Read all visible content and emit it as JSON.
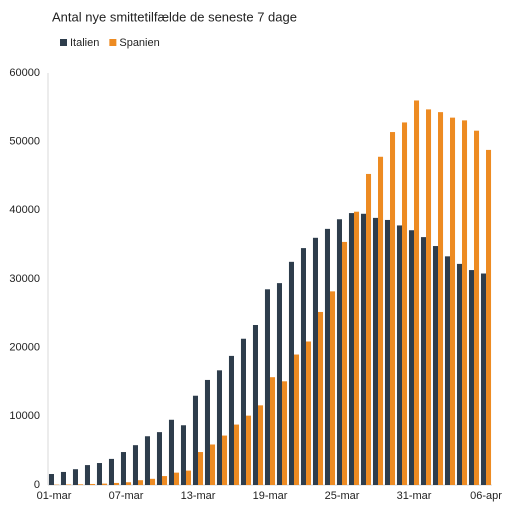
{
  "chart_data": {
    "type": "bar",
    "title": "Antal nye smittetilfælde de seneste 7 dage",
    "categories": [
      "01-mar",
      null,
      null,
      null,
      null,
      null,
      "07-mar",
      null,
      null,
      null,
      null,
      null,
      "13-mar",
      null,
      null,
      null,
      null,
      null,
      "19-mar",
      null,
      null,
      null,
      null,
      null,
      "25-mar",
      null,
      null,
      null,
      null,
      null,
      "31-mar",
      null,
      null,
      null,
      null,
      null,
      "06-apr"
    ],
    "series": [
      {
        "name": "Italien",
        "color": "#2e3d4c",
        "values": [
          1600,
          1900,
          2300,
          2900,
          3200,
          3800,
          4800,
          5800,
          7100,
          7700,
          9500,
          8700,
          13000,
          15300,
          16700,
          18800,
          21300,
          23300,
          28500,
          29400,
          32500,
          34500,
          36000,
          37300,
          38700,
          39600,
          39500,
          38900,
          38600,
          37800,
          37100,
          36100,
          34800,
          33300,
          32200,
          31300,
          30800
        ]
      },
      {
        "name": "Spanien",
        "color": "#ed8b22",
        "values": [
          50,
          80,
          100,
          150,
          200,
          300,
          400,
          700,
          900,
          1300,
          1800,
          2100,
          4800,
          5900,
          7200,
          8800,
          10100,
          11600,
          15700,
          15100,
          19000,
          20900,
          25200,
          28200,
          35400,
          39800,
          45300,
          47800,
          51400,
          52800,
          56000,
          54700,
          54300,
          53500,
          53100,
          51600,
          48800
        ]
      }
    ],
    "ylim": [
      0,
      60000
    ],
    "yticks": [
      0,
      10000,
      20000,
      30000,
      40000,
      50000,
      60000
    ],
    "grid": false,
    "legend": "top-left"
  }
}
